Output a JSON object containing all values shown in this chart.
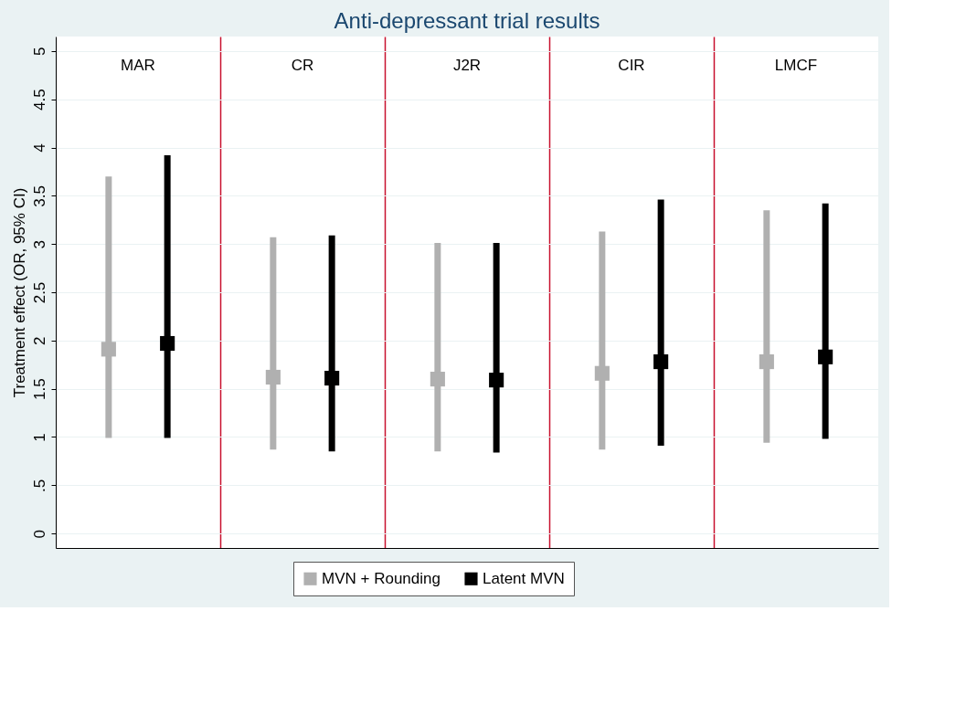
{
  "chart_data": {
    "type": "scatter",
    "title": "Anti-depressant trial results",
    "ylabel": "Treatment effect (OR, 95% CI)",
    "categories": [
      "MAR",
      "CR",
      "J2R",
      "CIR",
      "LMCF"
    ],
    "series": [
      {
        "name": "MVN + Rounding",
        "color": "#b0b0b0",
        "values": [
          1.91,
          1.62,
          1.6,
          1.66,
          1.78
        ],
        "errors": [
          [
            0.99,
            3.7
          ],
          [
            0.87,
            3.07
          ],
          [
            0.85,
            3.01
          ],
          [
            0.87,
            3.13
          ],
          [
            0.94,
            3.35
          ]
        ]
      },
      {
        "name": "Latent MVN",
        "color": "#000000",
        "values": [
          1.97,
          1.61,
          1.59,
          1.78,
          1.83
        ],
        "errors": [
          [
            0.99,
            3.92
          ],
          [
            0.85,
            3.09
          ],
          [
            0.84,
            3.01
          ],
          [
            0.91,
            3.46
          ],
          [
            0.98,
            3.42
          ]
        ]
      }
    ],
    "ylim": [
      -0.15,
      5.15
    ],
    "yticks": [
      0,
      {
        "value": 0.5,
        "label": ".5"
      },
      1,
      1.5,
      2,
      2.5,
      3,
      3.5,
      4,
      4.5,
      5
    ],
    "grid": true,
    "legend": "bottom",
    "marker": "square"
  }
}
